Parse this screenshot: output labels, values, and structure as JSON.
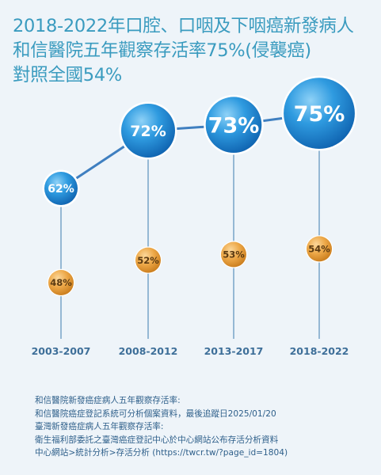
{
  "title_lines": [
    "2018-2022年口腔、口咽及下咽癌新發病人",
    "和信醫院五年觀察存活率75%(侵襲癌)",
    "對照全國54%"
  ],
  "chart_data": {
    "type": "line",
    "categories": [
      "2003-2007",
      "2008-2012",
      "2013-2017",
      "2018-2022"
    ],
    "series": [
      {
        "values": [
          62,
          72,
          73,
          75
        ],
        "labels": [
          "62%",
          "72%",
          "73%",
          "75%"
        ],
        "color": "#1e8ad6"
      },
      {
        "values": [
          48,
          52,
          53,
          54
        ],
        "labels": [
          "48%",
          "52%",
          "53%",
          "54%"
        ],
        "color": "#e8a23d"
      }
    ],
    "title": "",
    "xlabel": "",
    "ylabel": "",
    "grid": false,
    "legend": "none"
  },
  "footnote_lines": [
    "和信醫院新發癌症病人五年觀察存活率:",
    "和信醫院癌症登記系統可分析個案資料，最後追蹤日2025/01/20",
    "臺灣新發癌症病人五年觀察存活率:",
    "衛生福利部委託之臺灣癌症登記中心於中心網站公布存活分析資料",
    "中心網站>統計分析>存活分析 (https://twcr.tw/?page_id=1804)"
  ],
  "colors": {
    "title": "#3a9bbf",
    "background": "#eef4f9",
    "footnote": "#2e5f8a",
    "axis_label": "#3e6f99",
    "stem": "#6f9ec4"
  }
}
